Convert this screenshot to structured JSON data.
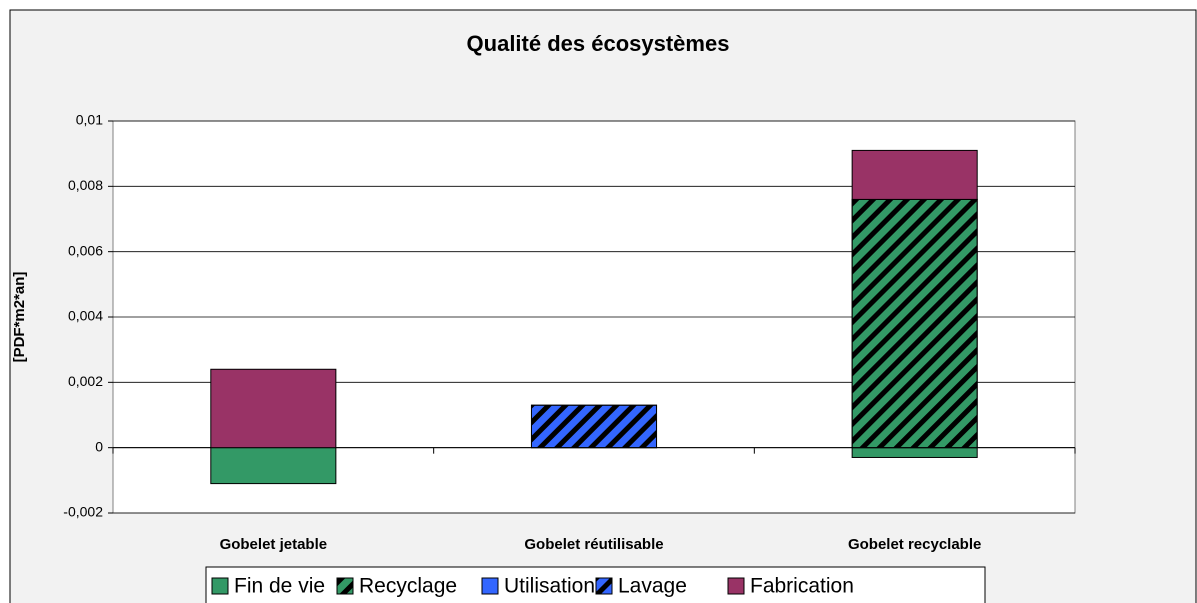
{
  "chart_data": {
    "type": "bar",
    "stacked": true,
    "title": "Qualité des écosystèmes",
    "y_label": "[PDF*m2*an]",
    "categories": [
      "Gobelet jetable",
      "Gobelet réutilisable",
      "Gobelet recyclable"
    ],
    "series": [
      {
        "name": "Fin de vie",
        "color": "#339966",
        "hatch": false,
        "values": [
          -0.0011,
          0,
          -0.0003
        ]
      },
      {
        "name": "Recyclage",
        "color": "#339966",
        "hatch": true,
        "values": [
          0,
          0,
          0.0076
        ]
      },
      {
        "name": "Utilisation",
        "color": "#3366ff",
        "hatch": false,
        "values": [
          0,
          0,
          0
        ]
      },
      {
        "name": "Lavage",
        "color": "#3366ff",
        "hatch": true,
        "values": [
          0,
          0.0013,
          0
        ]
      },
      {
        "name": "Fabrication",
        "color": "#993366",
        "hatch": false,
        "values": [
          0.0024,
          0,
          0.0015
        ]
      }
    ],
    "ylim": [
      -0.002,
      0.01
    ],
    "yticks": [
      {
        "value": -0.002,
        "label": "-0,002"
      },
      0,
      {
        "value": 0.002,
        "label": "0,002"
      },
      {
        "value": 0.004,
        "label": "0,004"
      },
      {
        "value": 0.006,
        "label": "0,006"
      },
      {
        "value": 0.008,
        "label": "0,008"
      },
      {
        "value": 0.01,
        "label": "0,01"
      }
    ],
    "grid": true,
    "legend": "bottom"
  }
}
